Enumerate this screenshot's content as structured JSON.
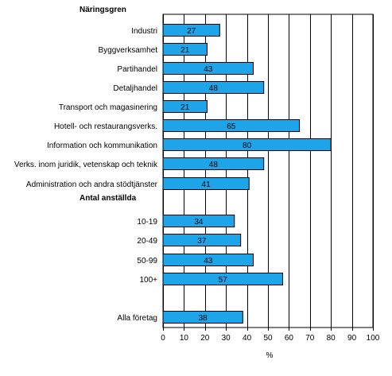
{
  "chart_data": {
    "type": "bar",
    "orientation": "horizontal",
    "title": "",
    "xlabel": "%",
    "xlim": [
      0,
      100
    ],
    "xticks": [
      0,
      10,
      20,
      30,
      40,
      50,
      60,
      70,
      80,
      90,
      100
    ],
    "grid": "vertical",
    "bar_color": "#1ea4e9",
    "groups": [
      {
        "title": "Näringsgren",
        "items": [
          {
            "label": "Industri",
            "value": 27
          },
          {
            "label": "Byggverksamhet",
            "value": 21
          },
          {
            "label": "Partihandel",
            "value": 43
          },
          {
            "label": "Detaljhandel",
            "value": 48
          },
          {
            "label": "Transport och magasinering",
            "value": 21
          },
          {
            "label": "Hotell- och restaurangsverks.",
            "value": 65
          },
          {
            "label": "Information och kommunikation",
            "value": 80
          },
          {
            "label": "Verks. inom juridik, vetenskap och teknik",
            "value": 48
          },
          {
            "label": "Administration och andra stödtjänster",
            "value": 41
          }
        ]
      },
      {
        "title": "Antal anställda",
        "items": [
          {
            "label": "10-19",
            "value": 34
          },
          {
            "label": "20-49",
            "value": 37
          },
          {
            "label": "50-99",
            "value": 43
          },
          {
            "label": "100+",
            "value": 57
          }
        ]
      },
      {
        "title": "",
        "items": [
          {
            "label": "Alla företag",
            "value": 38
          }
        ]
      }
    ]
  }
}
